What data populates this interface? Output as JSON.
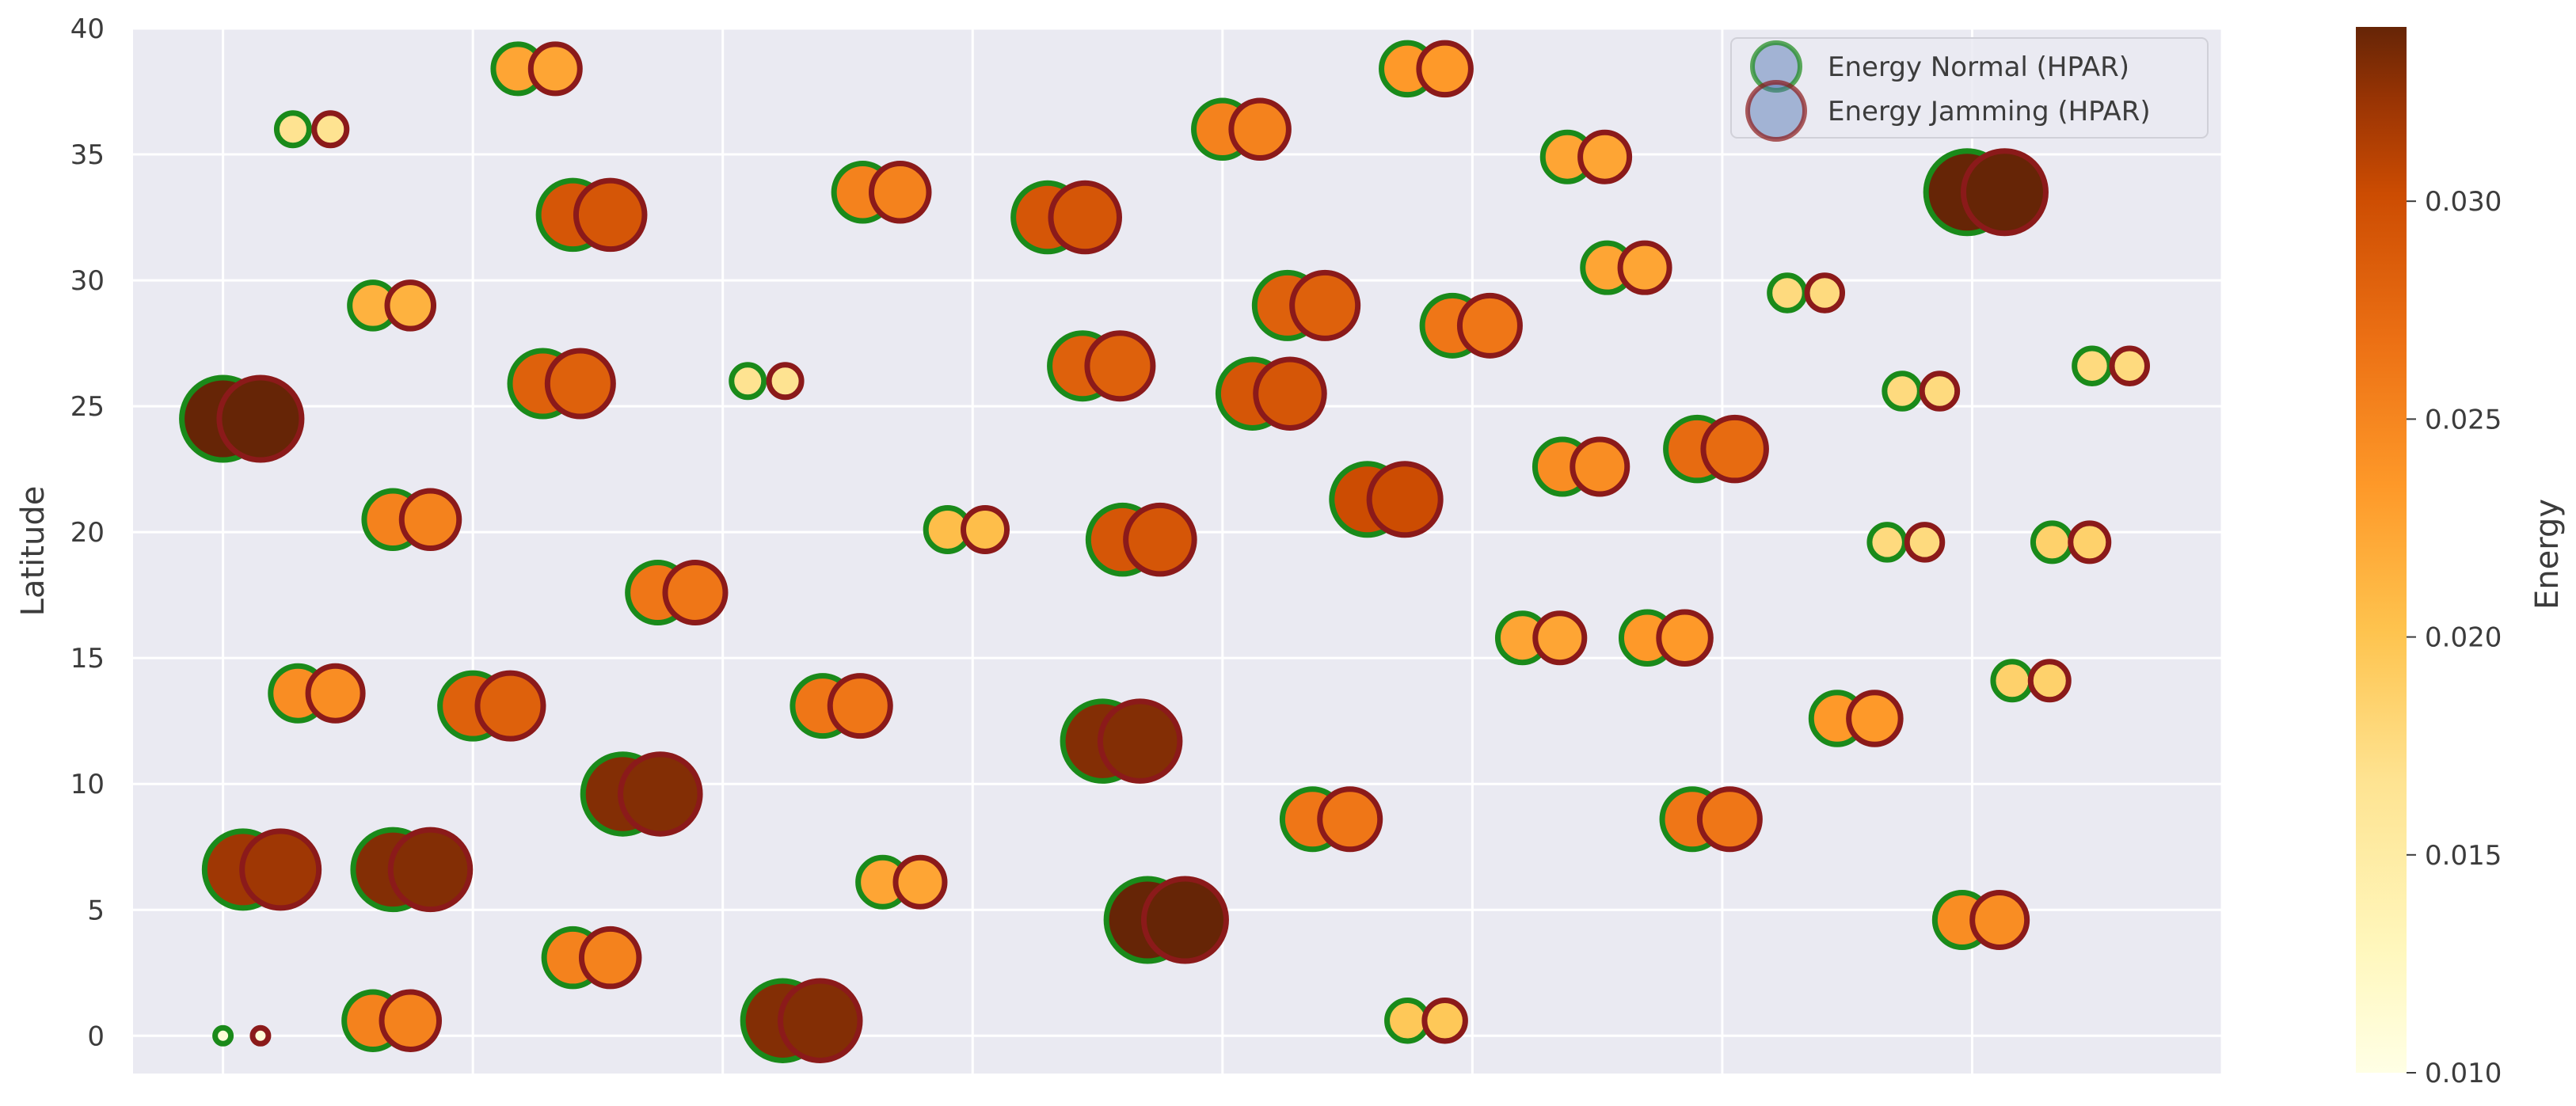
{
  "chart_data": {
    "type": "scatter",
    "title": "",
    "xlabel": "",
    "ylabel": "Latitude",
    "ylim": [
      -1.5,
      40
    ],
    "xlim": [
      -1.8,
      40
    ],
    "yticks": [
      0,
      5,
      10,
      15,
      20,
      25,
      30,
      35,
      40
    ],
    "grid": true,
    "legend_position": "top-right",
    "series": [
      {
        "name": "Energy Normal (HPAR)",
        "edge_color": "#1a8a1a",
        "fill_color": "#4c72b0"
      },
      {
        "name": "Energy Jamming (HPAR)",
        "edge_color": "#8b1a1a",
        "fill_color": "#4c72b0"
      }
    ],
    "jamming_x_offset": 0.75,
    "colorbar": {
      "label": "Energy",
      "min": 0.01,
      "max": 0.034,
      "ticks": [
        "0.010",
        "0.015",
        "0.020",
        "0.025",
        "0.030"
      ],
      "colormap": "YlOrBr"
    },
    "points": [
      {
        "x": 0.0,
        "y": 0.0,
        "energy": 0.01
      },
      {
        "x": 1.4,
        "y": 36.0,
        "energy": 0.016
      },
      {
        "x": 5.9,
        "y": 38.4,
        "energy": 0.022
      },
      {
        "x": 3.0,
        "y": 29.0,
        "energy": 0.021
      },
      {
        "x": 0.0,
        "y": 24.5,
        "energy": 0.034
      },
      {
        "x": 3.4,
        "y": 20.5,
        "energy": 0.025
      },
      {
        "x": 1.5,
        "y": 13.6,
        "energy": 0.024
      },
      {
        "x": 0.4,
        "y": 6.6,
        "energy": 0.032
      },
      {
        "x": 3.4,
        "y": 6.6,
        "energy": 0.033
      },
      {
        "x": 3.0,
        "y": 0.6,
        "energy": 0.025
      },
      {
        "x": 7.0,
        "y": 32.6,
        "energy": 0.029
      },
      {
        "x": 6.4,
        "y": 25.9,
        "energy": 0.028
      },
      {
        "x": 5.0,
        "y": 13.1,
        "energy": 0.028
      },
      {
        "x": 7.0,
        "y": 3.1,
        "energy": 0.025
      },
      {
        "x": 8.7,
        "y": 17.6,
        "energy": 0.026
      },
      {
        "x": 8.0,
        "y": 9.6,
        "energy": 0.033
      },
      {
        "x": 10.5,
        "y": 26.0,
        "energy": 0.016
      },
      {
        "x": 12.8,
        "y": 33.5,
        "energy": 0.025
      },
      {
        "x": 12.0,
        "y": 13.1,
        "energy": 0.026
      },
      {
        "x": 11.2,
        "y": 0.6,
        "energy": 0.033
      },
      {
        "x": 14.5,
        "y": 20.1,
        "energy": 0.02
      },
      {
        "x": 13.2,
        "y": 6.1,
        "energy": 0.022
      },
      {
        "x": 16.5,
        "y": 32.5,
        "energy": 0.029
      },
      {
        "x": 17.2,
        "y": 26.6,
        "energy": 0.028
      },
      {
        "x": 18.0,
        "y": 19.7,
        "energy": 0.029
      },
      {
        "x": 17.6,
        "y": 11.7,
        "energy": 0.033
      },
      {
        "x": 18.5,
        "y": 4.6,
        "energy": 0.034
      },
      {
        "x": 20.0,
        "y": 36.0,
        "energy": 0.025
      },
      {
        "x": 21.3,
        "y": 29.0,
        "energy": 0.028
      },
      {
        "x": 20.6,
        "y": 25.5,
        "energy": 0.029
      },
      {
        "x": 22.9,
        "y": 21.3,
        "energy": 0.03
      },
      {
        "x": 21.8,
        "y": 8.6,
        "energy": 0.026
      },
      {
        "x": 23.7,
        "y": 0.6,
        "energy": 0.019
      },
      {
        "x": 23.7,
        "y": 38.4,
        "energy": 0.023
      },
      {
        "x": 24.6,
        "y": 28.2,
        "energy": 0.026
      },
      {
        "x": 26.9,
        "y": 34.9,
        "energy": 0.022
      },
      {
        "x": 27.7,
        "y": 30.5,
        "energy": 0.022
      },
      {
        "x": 26.8,
        "y": 22.6,
        "energy": 0.024
      },
      {
        "x": 26.0,
        "y": 15.8,
        "energy": 0.022
      },
      {
        "x": 28.5,
        "y": 15.8,
        "energy": 0.023
      },
      {
        "x": 29.5,
        "y": 23.3,
        "energy": 0.027
      },
      {
        "x": 29.4,
        "y": 8.6,
        "energy": 0.026
      },
      {
        "x": 31.3,
        "y": 29.5,
        "energy": 0.017
      },
      {
        "x": 32.3,
        "y": 12.6,
        "energy": 0.023
      },
      {
        "x": 33.6,
        "y": 25.6,
        "energy": 0.017
      },
      {
        "x": 33.3,
        "y": 19.6,
        "energy": 0.017
      },
      {
        "x": 34.9,
        "y": 33.5,
        "energy": 0.034
      },
      {
        "x": 34.8,
        "y": 4.6,
        "energy": 0.024
      },
      {
        "x": 35.8,
        "y": 14.1,
        "energy": 0.018
      },
      {
        "x": 36.6,
        "y": 19.6,
        "energy": 0.018
      },
      {
        "x": 37.4,
        "y": 26.6,
        "energy": 0.017
      }
    ]
  }
}
